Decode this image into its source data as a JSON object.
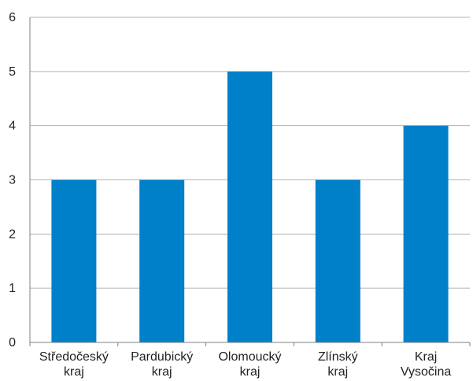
{
  "chart_data": {
    "type": "bar",
    "title": "",
    "xlabel": "",
    "ylabel": "",
    "categories": [
      [
        "Středočeský",
        "kraj"
      ],
      [
        "Pardubický",
        "kraj"
      ],
      [
        "Olomoucký",
        "kraj"
      ],
      [
        "Zlínský",
        "kraj"
      ],
      [
        "Kraj",
        "Vysočina"
      ]
    ],
    "values": [
      3,
      3,
      5,
      3,
      4
    ],
    "ylim": [
      0,
      6
    ],
    "yticks": [
      "0",
      "1",
      "2",
      "3",
      "4",
      "5",
      "6"
    ],
    "grid": true,
    "legend": "none",
    "colors": {
      "bar": "#0080c8",
      "grid": "#b3b3b3",
      "axis": "#808080",
      "text": "#222222"
    }
  }
}
